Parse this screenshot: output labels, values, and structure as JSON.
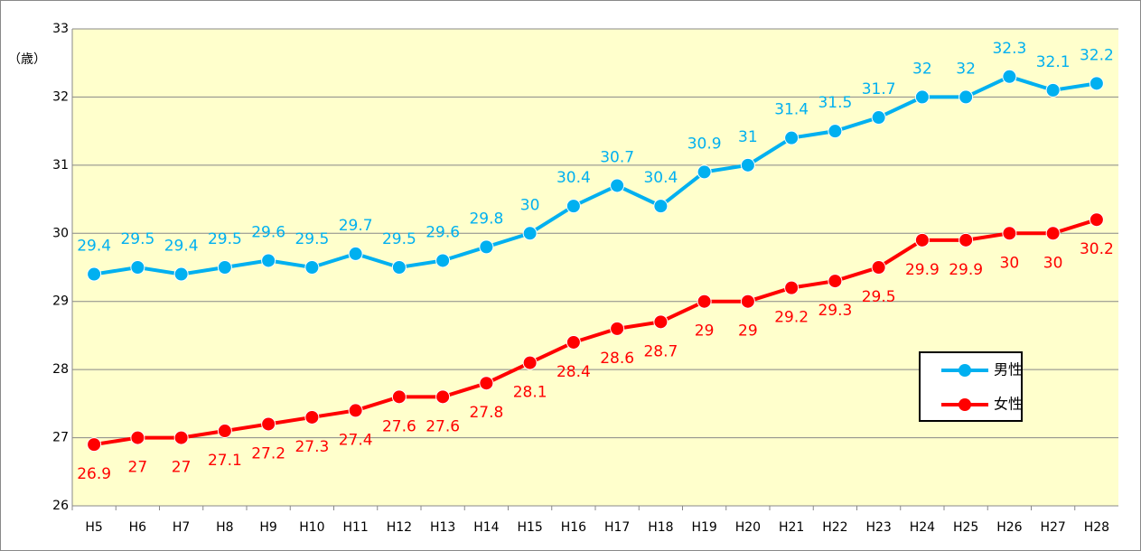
{
  "chart_data": {
    "type": "line",
    "y_label": "（歳）",
    "categories": [
      "H5",
      "H6",
      "H7",
      "H8",
      "H9",
      "H10",
      "H11",
      "H12",
      "H13",
      "H14",
      "H15",
      "H16",
      "H17",
      "H18",
      "H19",
      "H20",
      "H21",
      "H22",
      "H23",
      "H24",
      "H25",
      "H26",
      "H27",
      "H28"
    ],
    "series": [
      {
        "name": "男性",
        "color": "#00b0f0",
        "values": [
          29.4,
          29.5,
          29.4,
          29.5,
          29.6,
          29.5,
          29.7,
          29.5,
          29.6,
          29.8,
          30,
          30.4,
          30.7,
          30.4,
          30.9,
          31,
          31.4,
          31.5,
          31.7,
          32,
          32,
          32.3,
          32.1,
          32.2
        ]
      },
      {
        "name": "女性",
        "color": "#ff0000",
        "values": [
          26.9,
          27,
          27,
          27.1,
          27.2,
          27.3,
          27.4,
          27.6,
          27.6,
          27.8,
          28.1,
          28.4,
          28.6,
          28.7,
          29,
          29,
          29.2,
          29.3,
          29.5,
          29.9,
          29.9,
          30,
          30,
          30.2
        ]
      }
    ],
    "ylim": [
      26,
      33
    ],
    "yticks": [
      26,
      27,
      28,
      29,
      30,
      31,
      32,
      33
    ],
    "grid": true,
    "legend": "lower right",
    "background": "#ffffcc"
  }
}
